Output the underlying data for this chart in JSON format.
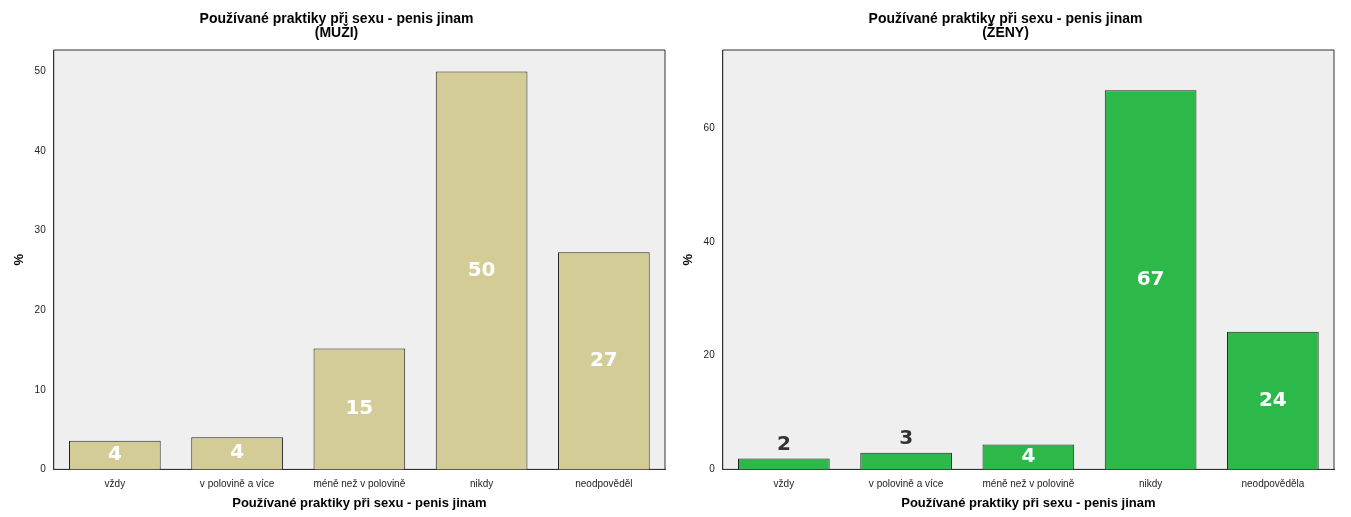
{
  "chart_data": [
    {
      "type": "bar",
      "title": "Používané praktiky při sexu - penis jinam",
      "subtitle": "(MUŽI)",
      "xlabel": "Používané praktiky při sexu - penis jinam",
      "ylabel": "%",
      "categories": [
        "vždy",
        "v polovině a více",
        "méně než v polovině",
        "nikdy",
        "neodpověděl"
      ],
      "values": [
        3.6,
        4.05,
        15.2,
        50,
        27.3
      ],
      "value_labels": [
        "4",
        "4",
        "15",
        "50",
        "27"
      ],
      "color": "#d3cc96",
      "ylim": [
        0,
        52.7
      ],
      "yticks": [
        0,
        10,
        20,
        30,
        40,
        50
      ],
      "grid": false
    },
    {
      "type": "bar",
      "title": "Používané praktiky při sexu - penis jinam",
      "subtitle": "(ŽENY)",
      "xlabel": "Používané praktiky při sexu - penis jinam",
      "ylabel": "%",
      "categories": [
        "vždy",
        "v polovině a více",
        "méně než v polovině",
        "nikdy",
        "neodpověděla"
      ],
      "values": [
        1.9,
        2.95,
        4.4,
        66.7,
        24.2
      ],
      "value_labels": [
        "2",
        "3",
        "4",
        "67",
        "24"
      ],
      "color": "#2db84a",
      "ylim": [
        0,
        73.8
      ],
      "yticks": [
        0,
        20,
        40,
        60
      ],
      "grid": false
    }
  ]
}
